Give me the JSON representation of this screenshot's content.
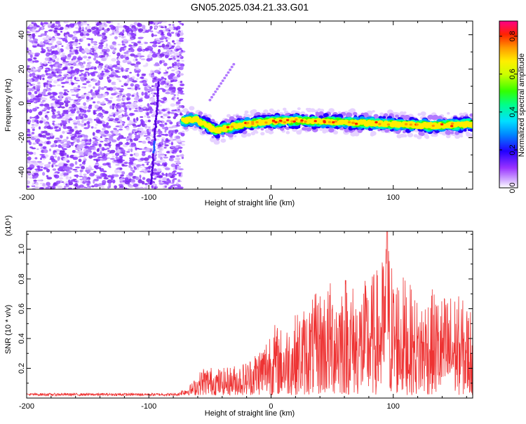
{
  "title": "GN05.2025.034.21.33.G01",
  "chart_data": [
    {
      "type": "heatmap",
      "xlabel": "Height of straight line (km)",
      "ylabel": "Frequency (Hz)",
      "xlim": [
        -200,
        165
      ],
      "ylim": [
        -50,
        48
      ],
      "xticks": [
        "-200",
        "-100",
        "0",
        "100"
      ],
      "yticks": [
        "-40",
        "-20",
        "0",
        "20",
        "40"
      ],
      "colorbar": {
        "label": "Normalized spectral amplitude",
        "range": [
          0,
          0.88
        ],
        "ticks": [
          "0.0",
          "0.2",
          "0.4",
          "0.6",
          "0.8"
        ]
      },
      "features": {
        "noise_region_x": [
          -200,
          -72
        ],
        "signal_band_x": [
          -72,
          165
        ],
        "signal_band_center_hz": [
          -10,
          -9,
          -16,
          -13,
          -11,
          -10,
          -11,
          -12,
          -13,
          -12
        ],
        "signal_band_x_points": [
          -72,
          -62,
          -45,
          -30,
          -10,
          20,
          60,
          100,
          130,
          165
        ]
      }
    },
    {
      "type": "line",
      "xlabel": "Height of straight line (km)",
      "ylabel": "SNR (10 * v/v)",
      "multiplier": "(x10⁴)",
      "xlim": [
        -200,
        165
      ],
      "ylim": [
        0,
        1.12
      ],
      "xticks": [
        "-200",
        "-100",
        "0",
        "100"
      ],
      "yticks": [
        "0.2",
        "0.4",
        "0.6",
        "0.8",
        "1.0"
      ],
      "color": "#ee3333",
      "envelope": {
        "x": [
          -200,
          -75,
          -65,
          -55,
          -40,
          -20,
          -5,
          0,
          10,
          20,
          30,
          40,
          50,
          60,
          70,
          80,
          90,
          95,
          100,
          110,
          120,
          130,
          140,
          150,
          160,
          165
        ],
        "y": [
          0.03,
          0.03,
          0.08,
          0.2,
          0.18,
          0.23,
          0.38,
          0.5,
          0.45,
          0.55,
          0.62,
          0.72,
          0.78,
          0.85,
          0.72,
          0.8,
          0.88,
          1.12,
          0.85,
          0.8,
          0.65,
          0.72,
          0.68,
          0.7,
          0.62,
          0.6
        ]
      }
    }
  ]
}
